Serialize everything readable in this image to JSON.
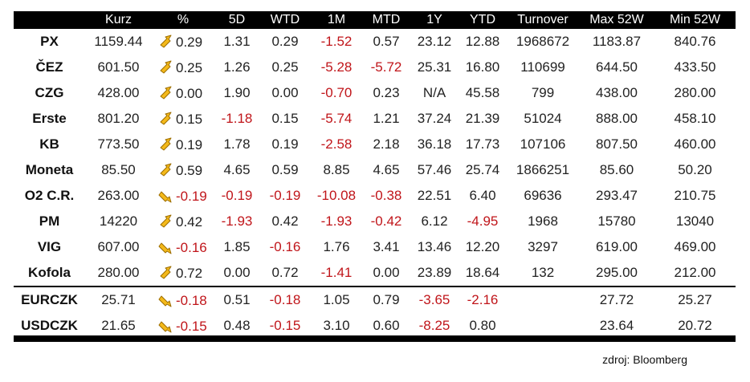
{
  "headers": [
    "",
    "Kurz",
    "%",
    "5D",
    "WTD",
    "1M",
    "MTD",
    "1Y",
    "YTD",
    "Turnover",
    "Max 52W",
    "Min 52W"
  ],
  "colors": {
    "negative": "#c0151a",
    "arrow_fill": "#f4b91a",
    "arrow_stroke": "#9c6d00"
  },
  "rows": [
    {
      "name": "PX",
      "kurz": "1159.44",
      "dir": "up",
      "pct": "0.29",
      "d5": "1.31",
      "wtd": "0.29",
      "m1": "-1.52",
      "mtd": "0.57",
      "y1": "23.12",
      "ytd": "12.88",
      "turnover": "1968672",
      "max52": "1183.87",
      "min52": "840.76"
    },
    {
      "name": "ČEZ",
      "kurz": "601.50",
      "dir": "up",
      "pct": "0.25",
      "d5": "1.26",
      "wtd": "0.25",
      "m1": "-5.28",
      "mtd": "-5.72",
      "y1": "25.31",
      "ytd": "16.80",
      "turnover": "110699",
      "max52": "644.50",
      "min52": "433.50"
    },
    {
      "name": "CZG",
      "kurz": "428.00",
      "dir": "up",
      "pct": "0.00",
      "d5": "1.90",
      "wtd": "0.00",
      "m1": "-0.70",
      "mtd": "0.23",
      "y1": "N/A",
      "ytd": "45.58",
      "turnover": "799",
      "max52": "438.00",
      "min52": "280.00"
    },
    {
      "name": "Erste",
      "kurz": "801.20",
      "dir": "up",
      "pct": "0.15",
      "d5": "-1.18",
      "wtd": "0.15",
      "m1": "-5.74",
      "mtd": "1.21",
      "y1": "37.24",
      "ytd": "21.39",
      "turnover": "51024",
      "max52": "888.00",
      "min52": "458.10"
    },
    {
      "name": "KB",
      "kurz": "773.50",
      "dir": "up",
      "pct": "0.19",
      "d5": "1.78",
      "wtd": "0.19",
      "m1": "-2.58",
      "mtd": "2.18",
      "y1": "36.18",
      "ytd": "17.73",
      "turnover": "107106",
      "max52": "807.50",
      "min52": "460.00"
    },
    {
      "name": "Moneta",
      "kurz": "85.50",
      "dir": "up",
      "pct": "0.59",
      "d5": "4.65",
      "wtd": "0.59",
      "m1": "8.85",
      "mtd": "4.65",
      "y1": "57.46",
      "ytd": "25.74",
      "turnover": "1866251",
      "max52": "85.60",
      "min52": "50.20"
    },
    {
      "name": "O2 C.R.",
      "kurz": "263.00",
      "dir": "down",
      "pct": "-0.19",
      "d5": "-0.19",
      "wtd": "-0.19",
      "m1": "-10.08",
      "mtd": "-0.38",
      "y1": "22.51",
      "ytd": "6.40",
      "turnover": "69636",
      "max52": "293.47",
      "min52": "210.75"
    },
    {
      "name": "PM",
      "kurz": "14220",
      "dir": "up",
      "pct": "0.42",
      "d5": "-1.93",
      "wtd": "0.42",
      "m1": "-1.93",
      "mtd": "-0.42",
      "y1": "6.12",
      "ytd": "-4.95",
      "turnover": "1968",
      "max52": "15780",
      "min52": "13040"
    },
    {
      "name": "VIG",
      "kurz": "607.00",
      "dir": "down",
      "pct": "-0.16",
      "d5": "1.85",
      "wtd": "-0.16",
      "m1": "1.76",
      "mtd": "3.41",
      "y1": "13.46",
      "ytd": "12.20",
      "turnover": "3297",
      "max52": "619.00",
      "min52": "469.00"
    },
    {
      "name": "Kofola",
      "kurz": "280.00",
      "dir": "up",
      "pct": "0.72",
      "d5": "0.00",
      "wtd": "0.72",
      "m1": "-1.41",
      "mtd": "0.00",
      "y1": "23.89",
      "ytd": "18.64",
      "turnover": "132",
      "max52": "295.00",
      "min52": "212.00"
    },
    {
      "name": "EURCZK",
      "kurz": "25.71",
      "dir": "down",
      "pct": "-0.18",
      "d5": "0.51",
      "wtd": "-0.18",
      "m1": "1.05",
      "mtd": "0.79",
      "y1": "-3.65",
      "ytd": "-2.16",
      "turnover": "",
      "max52": "27.72",
      "min52": "25.27"
    },
    {
      "name": "USDCZK",
      "kurz": "21.65",
      "dir": "down",
      "pct": "-0.15",
      "d5": "0.48",
      "wtd": "-0.15",
      "m1": "3.10",
      "mtd": "0.60",
      "y1": "-8.25",
      "ytd": "0.80",
      "turnover": "",
      "max52": "23.64",
      "min52": "20.72"
    }
  ],
  "source": "zdroj: Bloomberg"
}
